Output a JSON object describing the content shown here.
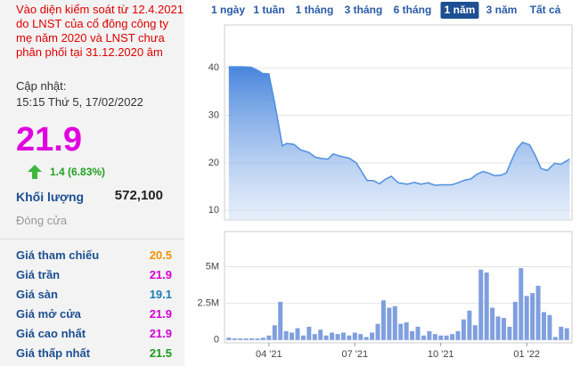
{
  "notice": "Vào diện kiểm soát từ 12.4.2021 do LNST của cổ đông công ty mẹ năm 2020 và LNST chưa phân phối tại 31.12.2020 âm",
  "updated_label": "Cập nhật:",
  "updated_time": "15:15 Thứ 5, 17/02/2022",
  "price": 21.9,
  "change": "1.4 (6.83%)",
  "volume_label": "Khối lượng",
  "volume": "572,100",
  "status": "Đóng cửa",
  "stats": [
    {
      "label": "Giá tham chiếu",
      "value": 20.5,
      "color": "#f39200"
    },
    {
      "label": "Giá trần",
      "value": 21.9,
      "color": "#d400d4"
    },
    {
      "label": "Giá sàn",
      "value": 19.1,
      "color": "#1a7fb5"
    },
    {
      "label": "Giá mở cửa",
      "value": 21.9,
      "color": "#d400d4"
    },
    {
      "label": "Giá cao nhất",
      "value": 21.9,
      "color": "#d400d4"
    },
    {
      "label": "Giá thấp nhất",
      "value": 21.5,
      "color": "#1a9a1a"
    }
  ],
  "tabs": [
    "1 ngày",
    "1 tuần",
    "1 tháng",
    "3 tháng",
    "6 tháng",
    "1 năm",
    "3 năm",
    "Tất cả"
  ],
  "active_tab": 5,
  "chart_data": [
    {
      "type": "area",
      "color": "#4f8fe0",
      "x": [
        1.6,
        2.07,
        2.38,
        2.63,
        2.78,
        3.0,
        3.19,
        3.31,
        3.47,
        3.62,
        3.87,
        4.12,
        4.4,
        4.62,
        4.87,
        5.06,
        5.24,
        5.49,
        5.8,
        6.05,
        6.43,
        6.64,
        6.86,
        7.05,
        7.27,
        7.52,
        7.83,
        8.08,
        8.3,
        8.55,
        8.79,
        9.07,
        9.39,
        9.6,
        9.85,
        10.04,
        10.26,
        10.48,
        10.69,
        10.88,
        11.1,
        11.29,
        11.47,
        11.66,
        11.85,
        12.1,
        12.28,
        12.5,
        12.72,
        12.97,
        13.19,
        13.5
      ],
      "values": [
        40.2,
        40.2,
        40.1,
        39.4,
        38.8,
        38.7,
        33,
        29,
        23.6,
        24.1,
        23.9,
        22.7,
        22.2,
        21.2,
        20.9,
        20.8,
        21.9,
        21.4,
        21.0,
        20.0,
        16.3,
        16.3,
        15.6,
        16.5,
        17.2,
        15.8,
        15.5,
        15.9,
        15.5,
        15.8,
        15.3,
        15.4,
        15.4,
        15.8,
        16.4,
        16.6,
        17.6,
        18.2,
        17.8,
        17.3,
        17.4,
        17.9,
        20.5,
        23.0,
        24.3,
        23.8,
        21.8,
        18.8,
        18.4,
        19.9,
        19.7,
        20.8
      ],
      "xlim": [
        1.45,
        13.58
      ],
      "ylim": [
        8,
        49
      ],
      "yticks": [
        10,
        20,
        30,
        40
      ],
      "grid": true
    },
    {
      "type": "bar",
      "color": "#7f9fdf",
      "x": [
        1.6,
        1.8,
        2.0,
        2.2,
        2.4,
        2.6,
        2.8,
        3.0,
        3.2,
        3.4,
        3.6,
        3.8,
        4.0,
        4.2,
        4.4,
        4.6,
        4.8,
        5.0,
        5.2,
        5.4,
        5.6,
        5.8,
        6.0,
        6.2,
        6.4,
        6.6,
        6.8,
        7.0,
        7.2,
        7.4,
        7.6,
        7.8,
        8.0,
        8.2,
        8.4,
        8.6,
        8.8,
        9.0,
        9.2,
        9.4,
        9.6,
        9.8,
        10.0,
        10.2,
        10.4,
        10.6,
        10.8,
        11.0,
        11.2,
        11.4,
        11.6,
        11.8,
        12.0,
        12.2,
        12.4,
        12.6,
        12.8,
        13.0,
        13.2,
        13.4
      ],
      "values": [
        0.15,
        0.1,
        0.1,
        0.1,
        0.1,
        0.1,
        0.15,
        0.3,
        1.0,
        2.6,
        0.6,
        0.5,
        0.8,
        0.3,
        0.9,
        0.4,
        0.7,
        0.3,
        0.5,
        0.4,
        0.5,
        0.3,
        0.5,
        0.4,
        0.2,
        0.5,
        1.1,
        2.7,
        2.2,
        2.3,
        1.1,
        1.2,
        0.6,
        0.9,
        0.3,
        0.6,
        0.4,
        0.3,
        0.3,
        0.4,
        0.6,
        1.4,
        2.0,
        1.0,
        4.8,
        4.6,
        2.2,
        1.6,
        1.5,
        0.9,
        2.6,
        4.9,
        3.0,
        3.2,
        3.7,
        1.9,
        1.7,
        0.2,
        0.9,
        0.8
      ],
      "xlim": [
        1.45,
        13.58
      ],
      "ylim": [
        -0.2,
        7.4
      ],
      "yticks": [
        0,
        {
          "value": 2.5,
          "label": "2.5M"
        },
        {
          "value": 5,
          "label": "5M"
        }
      ],
      "xticks": [
        {
          "value": 3,
          "label": "04 '21"
        },
        {
          "value": 6,
          "label": "07 '21"
        },
        {
          "value": 9,
          "label": "10 '21"
        },
        {
          "value": 12,
          "label": "01 '22"
        }
      ],
      "grid": true
    }
  ]
}
